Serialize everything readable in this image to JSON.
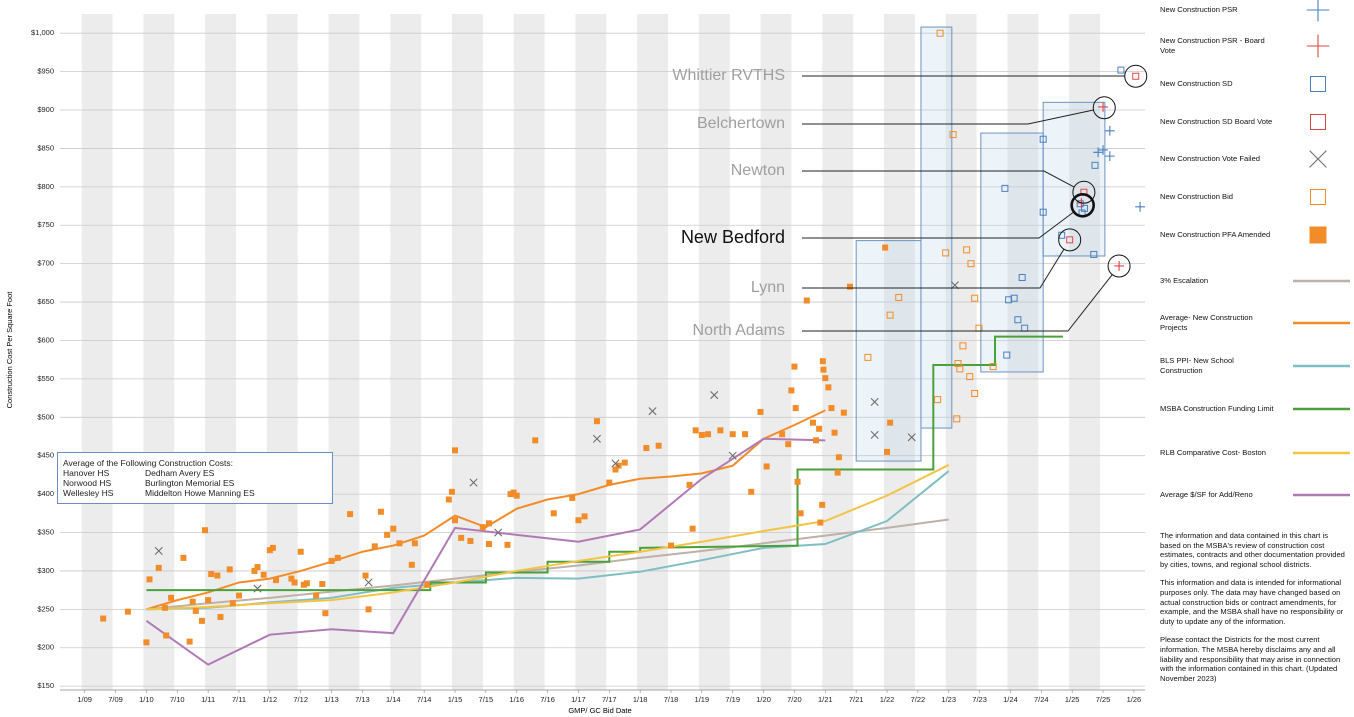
{
  "chart_data": {
    "type": "scatter",
    "y_label": "Construction Cost Per Square Foot",
    "x_label": "GMP/ GC Bid Date",
    "xlim": [
      2008.6,
      2026.18
    ],
    "ylim": [
      145,
      1025
    ],
    "grid": true,
    "xticks": [
      {
        "value": 2009,
        "label": "1/09"
      },
      {
        "value": 2009.5,
        "label": "7/09"
      },
      {
        "value": 2010,
        "label": "1/10"
      },
      {
        "value": 2010.5,
        "label": "7/10"
      },
      {
        "value": 2011,
        "label": "1/11"
      },
      {
        "value": 2011.5,
        "label": "7/11"
      },
      {
        "value": 2012,
        "label": "1/12"
      },
      {
        "value": 2012.5,
        "label": "7/12"
      },
      {
        "value": 2013,
        "label": "1/13"
      },
      {
        "value": 2013.5,
        "label": "7/13"
      },
      {
        "value": 2014,
        "label": "1/14"
      },
      {
        "value": 2014.5,
        "label": "7/14"
      },
      {
        "value": 2015,
        "label": "1/15"
      },
      {
        "value": 2015.5,
        "label": "7/15"
      },
      {
        "value": 2016,
        "label": "1/16"
      },
      {
        "value": 2016.5,
        "label": "7/16"
      },
      {
        "value": 2017,
        "label": "1/17"
      },
      {
        "value": 2017.5,
        "label": "7/17"
      },
      {
        "value": 2018,
        "label": "1/18"
      },
      {
        "value": 2018.5,
        "label": "7/18"
      },
      {
        "value": 2019,
        "label": "1/19"
      },
      {
        "value": 2019.5,
        "label": "7/19"
      },
      {
        "value": 2020,
        "label": "1/20"
      },
      {
        "value": 2020.5,
        "label": "7/20"
      },
      {
        "value": 2021,
        "label": "1/21"
      },
      {
        "value": 2021.5,
        "label": "7/21"
      },
      {
        "value": 2022,
        "label": "1/22"
      },
      {
        "value": 2022.5,
        "label": "7/22"
      },
      {
        "value": 2023,
        "label": "1/23"
      },
      {
        "value": 2023.5,
        "label": "7/23"
      },
      {
        "value": 2024,
        "label": "1/24"
      },
      {
        "value": 2024.5,
        "label": "7/24"
      },
      {
        "value": 2025,
        "label": "1/25"
      },
      {
        "value": 2025.5,
        "label": "7/25"
      },
      {
        "value": 2026,
        "label": "1/26"
      }
    ],
    "yticks": [
      {
        "value": 150,
        "label": "$150"
      },
      {
        "value": 200,
        "label": "$200"
      },
      {
        "value": 250,
        "label": "$250"
      },
      {
        "value": 300,
        "label": "$300"
      },
      {
        "value": 350,
        "label": "$350"
      },
      {
        "value": 400,
        "label": "$400"
      },
      {
        "value": 450,
        "label": "$450"
      },
      {
        "value": 500,
        "label": "$500"
      },
      {
        "value": 550,
        "label": "$550"
      },
      {
        "value": 600,
        "label": "$600"
      },
      {
        "value": 650,
        "label": "$650"
      },
      {
        "value": 700,
        "label": "$700"
      },
      {
        "value": 750,
        "label": "$750"
      },
      {
        "value": 800,
        "label": "$800"
      },
      {
        "value": 850,
        "label": "$850"
      },
      {
        "value": 900,
        "label": "$900"
      },
      {
        "value": 950,
        "label": "$950"
      },
      {
        "value": 1000,
        "label": "$1,000"
      }
    ],
    "series": [
      {
        "name": "New Construction PSR",
        "marker": "plus",
        "color": "#4a7fc1",
        "x": [
          2025.61,
          2025.42,
          2025.5,
          2025.61,
          2026.1
        ],
        "values": [
          873,
          845,
          848,
          840,
          774
        ]
      },
      {
        "name": "New Construction PSR - Board Vote",
        "marker": "plus",
        "color": "#e04444",
        "x": [
          2025.5,
          2025.76,
          2025.15
        ],
        "values": [
          904,
          697,
          779
        ]
      },
      {
        "name": "New Construction SD",
        "marker": "open-square",
        "color": "#4a7fc1",
        "x": [
          2025.79,
          2024.53,
          2023.91,
          2024.53,
          2024.19,
          2023.97,
          2024.06,
          2024.12,
          2024.23,
          2023.94,
          2025.37,
          2025.13,
          2025.16,
          2025.2,
          2024.83,
          2025.35
        ],
        "values": [
          952,
          862,
          798,
          767,
          682,
          653,
          655,
          627,
          616,
          581,
          828,
          778,
          766,
          772,
          737,
          712
        ]
      },
      {
        "name": "New Construction SD Board Vote",
        "marker": "open-square",
        "color": "#e04444",
        "x": [
          2026.03,
          2025.19,
          2024.96
        ],
        "values": [
          944,
          793,
          731
        ]
      },
      {
        "name": "New Construction Vote Failed",
        "marker": "cross",
        "color": "#6e6e6e",
        "x": [
          2010.2,
          2011.8,
          2013.6,
          2015.3,
          2015.7,
          2017.3,
          2017.6,
          2018.2,
          2019.2,
          2019.5,
          2021.8,
          2021.8,
          2022.4,
          2023.1
        ],
        "values": [
          326,
          277,
          285,
          415,
          350,
          472,
          440,
          508,
          529,
          450,
          520,
          477,
          474,
          672
        ]
      },
      {
        "name": "New Construction Bid",
        "marker": "open-square",
        "color": "#f28c28",
        "x": [
          2021.69,
          2022.19,
          2022.05,
          2022.86,
          2023.07,
          2022.95,
          2023.29,
          2023.36,
          2023.42,
          2023.49,
          2023.23,
          2023.15,
          2023.18,
          2023.34,
          2023.42,
          2022.82,
          2023.13,
          2023.72
        ],
        "values": [
          578,
          656,
          633,
          1000,
          868,
          714,
          718,
          700,
          655,
          616,
          593,
          570,
          563,
          553,
          531,
          523,
          498,
          566
        ]
      },
      {
        "name": "New Construction PFA Amended",
        "marker": "filled-square",
        "color": "#f28c28",
        "x": [
          2009.3,
          2009.7,
          2010.0,
          2010.05,
          2010.2,
          2010.3,
          2010.32,
          2010.4,
          2010.6,
          2010.7,
          2010.75,
          2010.8,
          2010.9,
          2010.95,
          2011.0,
          2011.05,
          2011.15,
          2011.2,
          2011.35,
          2011.4,
          2011.5,
          2011.75,
          2011.8,
          2011.9,
          2012.0,
          2012.05,
          2012.1,
          2012.35,
          2012.4,
          2012.5,
          2012.55,
          2012.6,
          2012.75,
          2012.85,
          2012.9,
          2013.0,
          2013.1,
          2013.3,
          2013.55,
          2013.6,
          2013.7,
          2013.8,
          2013.9,
          2014.0,
          2014.1,
          2014.3,
          2014.35,
          2014.55,
          2014.9,
          2014.95,
          2015.0,
          2015.0,
          2015.1,
          2015.25,
          2015.45,
          2015.55,
          2015.55,
          2015.85,
          2015.9,
          2015.95,
          2016.3,
          2016.0,
          2016.6,
          2016.9,
          2017.0,
          2017.1,
          2017.3,
          2017.5,
          2017.6,
          2017.65,
          2017.75,
          2018.1,
          2018.3,
          2018.5,
          2018.8,
          2018.85,
          2018.9,
          2019.0,
          2019.1,
          2019.3,
          2019.5,
          2019.7,
          2019.8,
          2019.95,
          2020.05,
          2020.3,
          2020.4,
          2020.45,
          2020.5,
          2020.52,
          2020.55,
          2020.6,
          2020.8,
          2020.85,
          2020.9,
          2020.92,
          2020.95,
          2020.96,
          2020.97,
          2021.0,
          2021.05,
          2021.1,
          2021.15,
          2021.2,
          2021.22,
          2021.3,
          2020.7,
          2021.4,
          2022.0,
          2022.05,
          2021.97
        ],
        "values": [
          238,
          247,
          207,
          289,
          304,
          252,
          216,
          265,
          317,
          208,
          260,
          248,
          235,
          353,
          262,
          296,
          294,
          240,
          302,
          258,
          268,
          300,
          305,
          295,
          327,
          330,
          288,
          290,
          285,
          325,
          282,
          284,
          268,
          283,
          245,
          313,
          317,
          374,
          294,
          250,
          332,
          377,
          347,
          355,
          336,
          308,
          336,
          282,
          393,
          403,
          457,
          366,
          343,
          339,
          357,
          335,
          362,
          334,
          400,
          402,
          470,
          398,
          375,
          395,
          366,
          371,
          495,
          415,
          432,
          437,
          441,
          460,
          463,
          333,
          412,
          355,
          483,
          477,
          478,
          483,
          478,
          478,
          403,
          507,
          436,
          478,
          465,
          535,
          566,
          512,
          416,
          375,
          493,
          470,
          485,
          363,
          386,
          573,
          562,
          551,
          539,
          512,
          480,
          428,
          448,
          506,
          652,
          670,
          455,
          493,
          721
        ]
      },
      {
        "name": "3% Escalation",
        "marker": "line",
        "color": "#bfb0a8",
        "x": [
          2010,
          2011,
          2012,
          2013,
          2014,
          2015,
          2016,
          2017,
          2018,
          2019,
          2020,
          2021,
          2022,
          2023
        ],
        "values": [
          250,
          258,
          265,
          273,
          281,
          290,
          299,
          307,
          317,
          326,
          336,
          346,
          356,
          367
        ]
      },
      {
        "name": "Average- New Construction Projects",
        "marker": "line",
        "color": "#f28c28",
        "x": [
          2010,
          2010.5,
          2011,
          2011.5,
          2012,
          2012.5,
          2013,
          2013.5,
          2014,
          2014.5,
          2015,
          2015.5,
          2016,
          2016.5,
          2017,
          2017.5,
          2018,
          2018.5,
          2019,
          2019.5,
          2020,
          2020.5,
          2021
        ],
        "values": [
          250,
          262,
          272,
          285,
          290,
          300,
          312,
          325,
          333,
          346,
          372,
          357,
          381,
          393,
          400,
          412,
          420,
          423,
          427,
          437,
          472,
          490,
          509
        ]
      },
      {
        "name": "BLS PPI- New School Construction",
        "marker": "line",
        "color": "#7fbfc4",
        "x": [
          2010,
          2011,
          2012,
          2013,
          2014,
          2015,
          2016,
          2017,
          2018,
          2019,
          2020,
          2021,
          2022,
          2023
        ],
        "values": [
          250,
          252,
          259,
          265,
          278,
          285,
          291,
          290,
          299,
          314,
          330,
          335,
          365,
          430
        ]
      },
      {
        "name": "MSBA Construction Funding Limit",
        "marker": "line",
        "color": "#4aa03a",
        "x": [
          2010,
          2014.6,
          2014.6,
          2015.5,
          2015.5,
          2016.5,
          2016.5,
          2017.5,
          2017.5,
          2018,
          2018,
          2020.55,
          2020.55,
          2022.75,
          2022.75,
          2023.75,
          2023.75,
          2024.85
        ],
        "values": [
          275,
          275,
          285,
          285,
          298,
          298,
          312,
          312,
          325,
          325,
          330,
          333,
          432,
          432,
          568,
          568,
          605,
          605
        ]
      },
      {
        "name": "RLB Comparative Cost- Boston",
        "marker": "line",
        "color": "#f3c444",
        "x": [
          2010,
          2011,
          2012,
          2013,
          2014,
          2015,
          2016,
          2017,
          2018,
          2019,
          2020,
          2021,
          2022,
          2023
        ],
        "values": [
          250,
          253,
          258,
          262,
          272,
          285,
          300,
          313,
          325,
          338,
          352,
          365,
          398,
          438
        ]
      },
      {
        "name": "Average $/SF for Add/Reno",
        "marker": "line",
        "color": "#b07ab5",
        "x": [
          2010,
          2011,
          2012,
          2013,
          2014,
          2015,
          2016,
          2017,
          2018,
          2019,
          2020,
          2021
        ],
        "values": [
          235,
          178,
          217,
          224,
          219,
          356,
          347,
          338,
          354,
          420,
          472,
          470
        ]
      }
    ],
    "range_boxes": [
      {
        "x": [
          2021.5,
          2022.55
        ],
        "values": [
          443,
          730
        ]
      },
      {
        "x": [
          2022.55,
          2023.05
        ],
        "values": [
          486,
          1008
        ]
      },
      {
        "x": [
          2023.52,
          2024.53
        ],
        "values": [
          559,
          870
        ]
      },
      {
        "x": [
          2024.53,
          2025.53
        ],
        "values": [
          710,
          910
        ]
      }
    ],
    "callouts": [
      {
        "label": "Whittier RVTHS",
        "x": 2026.03,
        "y": 944
      },
      {
        "label": "Belchertown",
        "x": 2025.52,
        "y": 903
      },
      {
        "label": "Newton",
        "x": 2025.19,
        "y": 793
      },
      {
        "label": "New Bedford",
        "x": 2025.17,
        "y": 776,
        "bold": true
      },
      {
        "label": "Lynn",
        "x": 2024.96,
        "y": 731
      },
      {
        "label": "North Adams",
        "x": 2025.76,
        "y": 697
      }
    ],
    "annotation_box": {
      "title": "Average of the Following Construction Costs:",
      "rows": [
        [
          "Hanover HS",
          "Dedham Avery ES"
        ],
        [
          "Norwood HS",
          "Burlington Memorial ES"
        ],
        [
          "Wellesley HS",
          "Middelton Howe Manning ES"
        ]
      ]
    },
    "notes": [
      "The information and data contained in this chart is based on the MSBA's review of construction cost estimates, contracts and other documentation provided by cities, towns, and regional school districts.",
      "This information and data is intended for informational purposes only. The data may have changed based on actual construction bids or contract amendments, for example, and the MSBA shall have no responsibility or duty to update any of the information.",
      "Please contact the Districts for the most current information. The MSBA hereby disclaims any and all liability and responsibility that may arise in connection with the information contained in this chart. (Updated November 2023)"
    ]
  }
}
